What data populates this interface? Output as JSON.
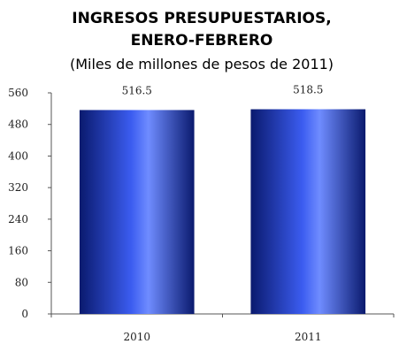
{
  "chart_data": {
    "type": "bar",
    "title_lines": [
      "INGRESOS PRESUPUESTARIOS,",
      "ENERO-FEBRERO"
    ],
    "subtitle": "(Miles de millones de pesos de 2011)",
    "categories": [
      "2010",
      "2011"
    ],
    "values": [
      516.5,
      518.5
    ],
    "value_labels": [
      "516.5",
      "518.5"
    ],
    "ylim": [
      0,
      560
    ],
    "yticks": [
      0,
      80,
      160,
      240,
      320,
      400,
      480,
      560
    ],
    "grid": false,
    "legend": "none",
    "colors": {
      "bar_edge": "#0a1a6e",
      "bar_mid": "#3b5cf0",
      "bar_center": "#6f8cff",
      "axis": "#555555"
    }
  }
}
